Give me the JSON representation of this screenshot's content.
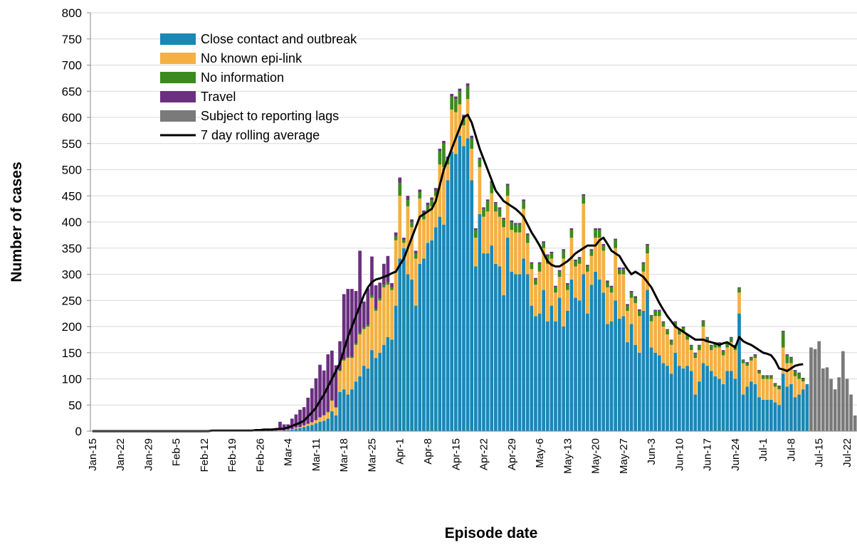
{
  "chart_data": {
    "type": "bar",
    "stacked": true,
    "xlabel": "Episode date",
    "ylabel": "Number of cases",
    "ylim": [
      0,
      800
    ],
    "yticks": [
      0,
      50,
      100,
      150,
      200,
      250,
      300,
      350,
      400,
      450,
      500,
      550,
      600,
      650,
      700,
      750,
      800
    ],
    "grid": true,
    "legend": "upper-left",
    "categories": [
      "Jan-15",
      null,
      null,
      null,
      null,
      null,
      null,
      "Jan-22",
      null,
      null,
      null,
      null,
      null,
      null,
      "Jan-29",
      null,
      null,
      null,
      null,
      null,
      null,
      "Feb-5",
      null,
      null,
      null,
      null,
      null,
      null,
      "Feb-12",
      null,
      null,
      null,
      null,
      null,
      null,
      "Feb-19",
      null,
      null,
      null,
      null,
      null,
      null,
      "Feb-26",
      null,
      null,
      null,
      null,
      null,
      null,
      "Mar-4",
      null,
      null,
      null,
      null,
      null,
      null,
      "Mar-11",
      null,
      null,
      null,
      null,
      null,
      null,
      "Mar-18",
      null,
      null,
      null,
      null,
      null,
      null,
      "Mar-25",
      null,
      null,
      null,
      null,
      null,
      null,
      "Apr-1",
      null,
      null,
      null,
      null,
      null,
      null,
      "Apr-8",
      null,
      null,
      null,
      null,
      null,
      null,
      "Apr-15",
      null,
      null,
      null,
      null,
      null,
      null,
      "Apr-22",
      null,
      null,
      null,
      null,
      null,
      null,
      "Apr-29",
      null,
      null,
      null,
      null,
      null,
      null,
      "May-6",
      null,
      null,
      null,
      null,
      null,
      null,
      "May-13",
      null,
      null,
      null,
      null,
      null,
      null,
      "May-20",
      null,
      null,
      null,
      null,
      null,
      null,
      "May-27",
      null,
      null,
      null,
      null,
      null,
      null,
      "Jun-3",
      null,
      null,
      null,
      null,
      null,
      null,
      "Jun-10",
      null,
      null,
      null,
      null,
      null,
      null,
      "Jun-17",
      null,
      null,
      null,
      null,
      null,
      null,
      "Jun-24",
      null,
      null,
      null,
      null,
      null,
      null,
      "Jul-1",
      null,
      null,
      null,
      null,
      null,
      null,
      "Jul-8",
      null,
      null,
      null,
      null,
      null,
      null,
      "Jul-15",
      null,
      null,
      null,
      null,
      null,
      null,
      "Jul-22",
      null,
      null
    ],
    "series": [
      {
        "name": "Close contact and outbreak",
        "color": "#1b87b4",
        "values": [
          0,
          0,
          0,
          0,
          0,
          0,
          0,
          0,
          0,
          0,
          0,
          0,
          0,
          0,
          0,
          0,
          0,
          0,
          0,
          0,
          0,
          0,
          0,
          0,
          0,
          0,
          0,
          0,
          0,
          0,
          0,
          0,
          0,
          0,
          0,
          0,
          0,
          0,
          0,
          0,
          0,
          0,
          0,
          0,
          0,
          0,
          1,
          1,
          1,
          2,
          3,
          5,
          6,
          8,
          10,
          12,
          15,
          18,
          20,
          24,
          38,
          30,
          75,
          80,
          70,
          80,
          95,
          105,
          125,
          120,
          155,
          140,
          150,
          165,
          180,
          175,
          240,
          330,
          350,
          300,
          290,
          240,
          320,
          330,
          360,
          365,
          390,
          410,
          395,
          480,
          535,
          530,
          565,
          545,
          560,
          480,
          315,
          415,
          340,
          340,
          355,
          320,
          315,
          260,
          370,
          305,
          300,
          300,
          330,
          300,
          240,
          220,
          225,
          270,
          210,
          240,
          210,
          255,
          200,
          230,
          290,
          255,
          250,
          300,
          225,
          280,
          305,
          290,
          265,
          205,
          210,
          250,
          215,
          220,
          170,
          205,
          165,
          150,
          230,
          270,
          160,
          150,
          145,
          130,
          125,
          110,
          150,
          125,
          120,
          125,
          115,
          70,
          95,
          130,
          125,
          115,
          105,
          100,
          90,
          115,
          115,
          100,
          225,
          70,
          85,
          95,
          90,
          65,
          60,
          60,
          60,
          55,
          50,
          110,
          85,
          90,
          65,
          70,
          80,
          90,
          0,
          0,
          0,
          0,
          0,
          0,
          0,
          0,
          0,
          0,
          0,
          0
        ]
      },
      {
        "name": "No known epi-link",
        "color": "#f4b043",
        "values": [
          0,
          0,
          0,
          0,
          0,
          0,
          0,
          0,
          0,
          0,
          0,
          0,
          0,
          0,
          0,
          0,
          0,
          0,
          0,
          0,
          0,
          0,
          0,
          0,
          0,
          0,
          0,
          0,
          0,
          0,
          0,
          0,
          0,
          0,
          0,
          0,
          0,
          0,
          0,
          0,
          0,
          0,
          0,
          0,
          0,
          0,
          0,
          1,
          0,
          1,
          1,
          2,
          2,
          3,
          4,
          5,
          6,
          8,
          10,
          12,
          20,
          15,
          40,
          55,
          70,
          60,
          70,
          80,
          70,
          80,
          100,
          90,
          100,
          110,
          100,
          95,
          125,
          120,
          10,
          130,
          100,
          90,
          125,
          75,
          60,
          65,
          60,
          100,
          110,
          30,
          80,
          80,
          60,
          40,
          75,
          60,
          55,
          90,
          70,
          80,
          100,
          100,
          95,
          130,
          80,
          80,
          80,
          80,
          95,
          60,
          70,
          60,
          80,
          80,
          110,
          90,
          55,
          40,
          130,
          40,
          80,
          60,
          70,
          135,
          80,
          55,
          65,
          80,
          80,
          70,
          55,
          100,
          85,
          80,
          60,
          50,
          80,
          70,
          75,
          70,
          50,
          70,
          75,
          70,
          60,
          55,
          50,
          60,
          70,
          50,
          40,
          70,
          60,
          70,
          45,
          40,
          55,
          60,
          55,
          45,
          55,
          55,
          40,
          60,
          40,
          40,
          50,
          45,
          40,
          40,
          40,
          30,
          30,
          50,
          45,
          40,
          40,
          30,
          15,
          0,
          0,
          0,
          0,
          0,
          0,
          0,
          0,
          0,
          0,
          0,
          0,
          0
        ]
      },
      {
        "name": "No information",
        "color": "#3b8a1f",
        "values": [
          0,
          0,
          0,
          0,
          0,
          0,
          0,
          0,
          0,
          0,
          0,
          0,
          0,
          0,
          0,
          0,
          0,
          0,
          0,
          0,
          0,
          0,
          0,
          0,
          0,
          0,
          0,
          0,
          0,
          0,
          0,
          0,
          0,
          0,
          0,
          0,
          0,
          0,
          0,
          0,
          0,
          0,
          0,
          0,
          0,
          0,
          0,
          0,
          0,
          0,
          0,
          0,
          0,
          0,
          0,
          0,
          0,
          1,
          1,
          1,
          1,
          1,
          2,
          2,
          2,
          2,
          3,
          3,
          3,
          3,
          4,
          4,
          4,
          5,
          5,
          5,
          8,
          25,
          5,
          12,
          10,
          10,
          12,
          12,
          12,
          12,
          10,
          25,
          45,
          10,
          25,
          25,
          25,
          15,
          25,
          20,
          15,
          15,
          15,
          20,
          20,
          15,
          15,
          15,
          20,
          15,
          15,
          15,
          15,
          15,
          10,
          10,
          15,
          10,
          15,
          10,
          10,
          10,
          15,
          10,
          15,
          10,
          10,
          15,
          10,
          10,
          15,
          15,
          10,
          10,
          10,
          15,
          10,
          10,
          10,
          10,
          10,
          10,
          15,
          15,
          10,
          10,
          10,
          8,
          8,
          8,
          8,
          8,
          8,
          8,
          8,
          8,
          8,
          10,
          8,
          8,
          8,
          8,
          8,
          8,
          8,
          8,
          8,
          5,
          5,
          5,
          5,
          5,
          5,
          5,
          5,
          5,
          5,
          30,
          15,
          10,
          10,
          10,
          5,
          0,
          0,
          0,
          0,
          0,
          0,
          0,
          0,
          0,
          0,
          0,
          0,
          0
        ]
      },
      {
        "name": "Travel",
        "color": "#6b2f80",
        "values": [
          0,
          0,
          0,
          0,
          0,
          0,
          0,
          0,
          0,
          0,
          0,
          0,
          0,
          0,
          0,
          0,
          0,
          0,
          0,
          0,
          0,
          0,
          0,
          0,
          0,
          0,
          0,
          0,
          0,
          0,
          0,
          0,
          0,
          0,
          0,
          1,
          1,
          2,
          1,
          2,
          2,
          3,
          2,
          3,
          3,
          3,
          4,
          16,
          12,
          10,
          20,
          25,
          33,
          35,
          50,
          65,
          80,
          100,
          85,
          110,
          95,
          80,
          55,
          125,
          130,
          130,
          100,
          157,
          50,
          70,
          75,
          45,
          30,
          40,
          50,
          8,
          7,
          10,
          5,
          8,
          5,
          5,
          5,
          5,
          5,
          5,
          5,
          5,
          5,
          5,
          5,
          5,
          5,
          5,
          5,
          5,
          3,
          3,
          3,
          3,
          3,
          3,
          3,
          3,
          3,
          3,
          3,
          3,
          3,
          3,
          3,
          3,
          3,
          3,
          3,
          3,
          3,
          3,
          3,
          3,
          3,
          3,
          3,
          3,
          3,
          3,
          3,
          3,
          3,
          3,
          3,
          3,
          3,
          3,
          3,
          3,
          3,
          3,
          3,
          3,
          2,
          2,
          2,
          2,
          2,
          2,
          2,
          2,
          2,
          2,
          2,
          2,
          2,
          2,
          2,
          2,
          2,
          2,
          2,
          2,
          2,
          2,
          2,
          2,
          2,
          2,
          2,
          2,
          2,
          2,
          2,
          2,
          2,
          2,
          2,
          2,
          2,
          2,
          2,
          0,
          0,
          0,
          0,
          0,
          0,
          0,
          0,
          0,
          0,
          0,
          0,
          0
        ]
      },
      {
        "name": "Subject to reporting lags",
        "color": "#7a7a7a",
        "values": [
          0,
          0,
          0,
          0,
          0,
          0,
          0,
          0,
          0,
          0,
          0,
          0,
          0,
          0,
          0,
          0,
          0,
          0,
          0,
          0,
          0,
          0,
          0,
          0,
          0,
          0,
          0,
          0,
          0,
          0,
          0,
          0,
          0,
          0,
          0,
          0,
          0,
          0,
          0,
          0,
          0,
          0,
          0,
          0,
          0,
          0,
          0,
          0,
          0,
          0,
          0,
          0,
          0,
          0,
          0,
          0,
          0,
          0,
          0,
          0,
          0,
          0,
          0,
          0,
          0,
          0,
          0,
          0,
          0,
          0,
          0,
          0,
          0,
          0,
          0,
          0,
          0,
          0,
          0,
          0,
          0,
          0,
          0,
          0,
          0,
          0,
          0,
          0,
          0,
          0,
          0,
          0,
          0,
          0,
          0,
          0,
          0,
          0,
          0,
          0,
          0,
          0,
          0,
          0,
          0,
          0,
          0,
          0,
          0,
          0,
          0,
          0,
          0,
          0,
          0,
          0,
          0,
          0,
          0,
          0,
          0,
          0,
          0,
          0,
          0,
          0,
          0,
          0,
          0,
          0,
          0,
          0,
          0,
          0,
          0,
          0,
          0,
          0,
          0,
          0,
          0,
          0,
          0,
          0,
          0,
          0,
          0,
          0,
          0,
          0,
          0,
          0,
          0,
          0,
          0,
          0,
          0,
          0,
          0,
          0,
          0,
          0,
          0,
          0,
          0,
          0,
          0,
          0,
          0,
          0,
          0,
          0,
          0,
          0,
          0,
          0,
          0,
          0,
          0,
          0,
          160,
          157,
          172,
          120,
          122,
          100,
          80,
          103,
          153,
          100,
          70,
          30
        ]
      },
      {
        "name": "7 day rolling average",
        "color": "#000000",
        "type": "line",
        "values": [
          0,
          0,
          0,
          0,
          0,
          0,
          0,
          0,
          0,
          0,
          0,
          0,
          0,
          0,
          0,
          0,
          0,
          0,
          0,
          0,
          0,
          0,
          0,
          0,
          0,
          0,
          0,
          0,
          0,
          0,
          1,
          1,
          1,
          1,
          1,
          1,
          1,
          1,
          1,
          1,
          1,
          2,
          2,
          3,
          3,
          3,
          4,
          4,
          5,
          7,
          10,
          13,
          16,
          20,
          28,
          36,
          45,
          58,
          70,
          85,
          100,
          115,
          130,
          155,
          180,
          200,
          220,
          240,
          260,
          275,
          285,
          290,
          292,
          295,
          298,
          302,
          305,
          318,
          330,
          350,
          370,
          390,
          410,
          415,
          420,
          425,
          440,
          470,
          500,
          520,
          540,
          560,
          580,
          600,
          605,
          590,
          565,
          540,
          520,
          500,
          480,
          460,
          450,
          440,
          435,
          430,
          425,
          418,
          410,
          395,
          380,
          368,
          355,
          340,
          325,
          318,
          315,
          315,
          320,
          325,
          332,
          340,
          345,
          350,
          355,
          355,
          355,
          365,
          370,
          358,
          345,
          340,
          335,
          322,
          310,
          300,
          305,
          300,
          295,
          285,
          275,
          260,
          245,
          232,
          220,
          210,
          200,
          195,
          190,
          185,
          180,
          175,
          175,
          175,
          172,
          170,
          168,
          165,
          168,
          170,
          165,
          160,
          180,
          172,
          168,
          165,
          160,
          155,
          150,
          148,
          145,
          135,
          120,
          118,
          115,
          120,
          125,
          127,
          128,
          null,
          null,
          null,
          null,
          null,
          null,
          null,
          null,
          null,
          null,
          null,
          null,
          null
        ]
      }
    ]
  }
}
